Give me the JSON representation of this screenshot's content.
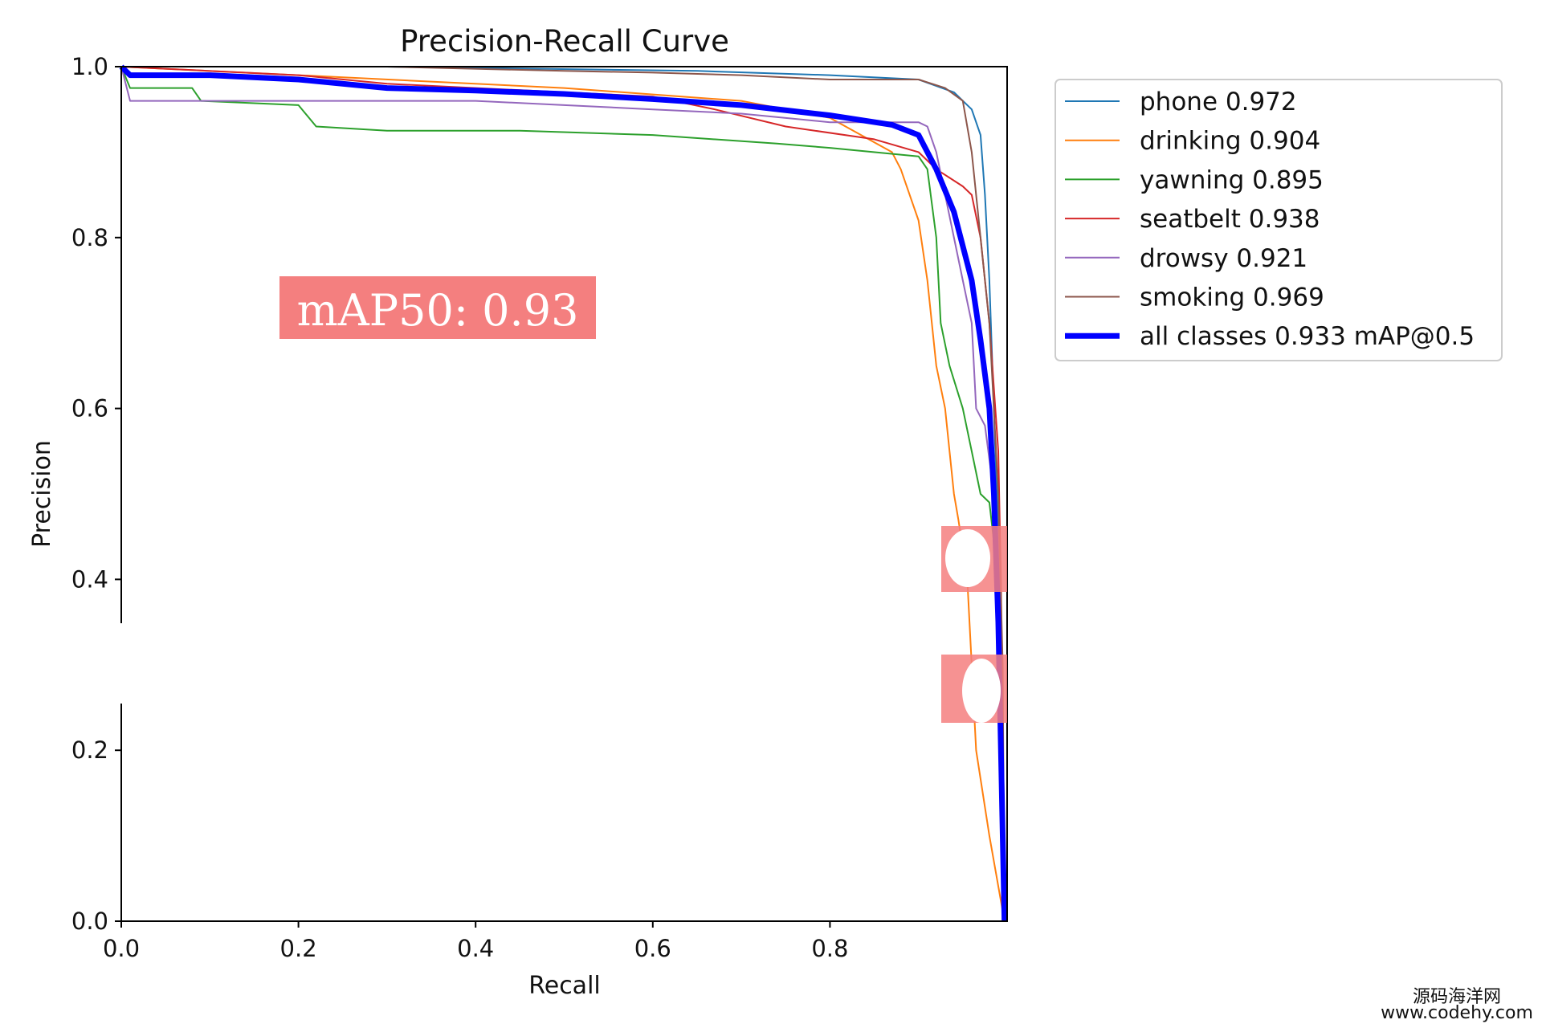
{
  "chart_data": {
    "type": "line",
    "title": "Precision-Recall Curve",
    "xlabel": "Recall",
    "ylabel": "Precision",
    "xlim": [
      0,
      1.0
    ],
    "ylim": [
      0,
      1.0
    ],
    "xticks": [
      "0.0",
      "0.2",
      "0.4",
      "0.6",
      "0.8"
    ],
    "yticks": [
      "0.0",
      "0.2",
      "0.4",
      "0.6",
      "0.8",
      "1.0"
    ],
    "xtick_values": [
      0,
      0.2,
      0.4,
      0.6,
      0.8
    ],
    "ytick_values": [
      0,
      0.2,
      0.4,
      0.6,
      0.8,
      1.0
    ],
    "grid": false,
    "legend_position": "outside-top-right",
    "series": [
      {
        "name": "phone 0.972",
        "color": "#1f77b4",
        "width": 2,
        "x": [
          0,
          0.3,
          0.65,
          0.8,
          0.9,
          0.94,
          0.96,
          0.97,
          0.975,
          0.98,
          0.985,
          0.99,
          0.993,
          0.997
        ],
        "y": [
          1,
          1,
          0.995,
          0.99,
          0.985,
          0.97,
          0.95,
          0.92,
          0.85,
          0.75,
          0.6,
          0.45,
          0.25,
          0
        ]
      },
      {
        "name": "drinking 0.904",
        "color": "#ff7f0e",
        "width": 2,
        "x": [
          0,
          0.2,
          0.5,
          0.7,
          0.8,
          0.87,
          0.88,
          0.9,
          0.91,
          0.92,
          0.93,
          0.94,
          0.945,
          0.955,
          0.96,
          0.965,
          0.98,
          0.997
        ],
        "y": [
          1,
          0.99,
          0.975,
          0.96,
          0.94,
          0.9,
          0.88,
          0.82,
          0.75,
          0.65,
          0.6,
          0.5,
          0.47,
          0.4,
          0.3,
          0.2,
          0.1,
          0
        ]
      },
      {
        "name": "yawning 0.895",
        "color": "#2ca02c",
        "width": 2,
        "x": [
          0,
          0.01,
          0.08,
          0.09,
          0.2,
          0.22,
          0.3,
          0.45,
          0.6,
          0.74,
          0.8,
          0.9,
          0.91,
          0.92,
          0.925,
          0.935,
          0.95,
          0.96,
          0.97,
          0.98,
          0.99,
          0.995,
          0.997
        ],
        "y": [
          1,
          0.975,
          0.975,
          0.96,
          0.955,
          0.93,
          0.925,
          0.925,
          0.92,
          0.91,
          0.905,
          0.895,
          0.88,
          0.8,
          0.7,
          0.65,
          0.6,
          0.55,
          0.5,
          0.49,
          0.4,
          0.2,
          0
        ]
      },
      {
        "name": "seatbelt 0.938",
        "color": "#d62728",
        "width": 2,
        "x": [
          0,
          0.2,
          0.3,
          0.5,
          0.6,
          0.67,
          0.75,
          0.85,
          0.9,
          0.92,
          0.95,
          0.96,
          0.97,
          0.98,
          0.99,
          0.993,
          0.995,
          0.997
        ],
        "y": [
          1,
          0.99,
          0.98,
          0.97,
          0.965,
          0.95,
          0.93,
          0.915,
          0.9,
          0.88,
          0.86,
          0.85,
          0.8,
          0.7,
          0.55,
          0.4,
          0.2,
          0
        ]
      },
      {
        "name": "drowsy 0.921",
        "color": "#9467bd",
        "width": 2,
        "x": [
          0,
          0.01,
          0.3,
          0.4,
          0.5,
          0.6,
          0.7,
          0.8,
          0.9,
          0.91,
          0.92,
          0.93,
          0.95,
          0.96,
          0.965,
          0.975,
          0.985,
          0.99,
          0.997
        ],
        "y": [
          1,
          0.96,
          0.96,
          0.96,
          0.955,
          0.95,
          0.945,
          0.935,
          0.935,
          0.93,
          0.9,
          0.85,
          0.75,
          0.7,
          0.6,
          0.58,
          0.5,
          0.45,
          0
        ]
      },
      {
        "name": "smoking 0.969",
        "color": "#8c564b",
        "width": 2,
        "x": [
          0,
          0.3,
          0.5,
          0.6,
          0.7,
          0.8,
          0.9,
          0.93,
          0.95,
          0.96,
          0.965,
          0.97,
          0.975,
          0.98,
          0.985,
          0.99,
          0.995,
          0.997
        ],
        "y": [
          1,
          1,
          0.995,
          0.993,
          0.99,
          0.985,
          0.985,
          0.975,
          0.96,
          0.9,
          0.85,
          0.8,
          0.75,
          0.7,
          0.6,
          0.5,
          0.3,
          0
        ]
      },
      {
        "name": "all classes 0.933 mAP@0.5",
        "color": "#0000ff",
        "width": 7,
        "x": [
          0,
          0.01,
          0.1,
          0.2,
          0.3,
          0.4,
          0.5,
          0.6,
          0.7,
          0.8,
          0.87,
          0.9,
          0.92,
          0.94,
          0.96,
          0.97,
          0.98,
          0.985,
          0.99,
          0.993,
          0.997
        ],
        "y": [
          1,
          0.99,
          0.99,
          0.985,
          0.975,
          0.972,
          0.968,
          0.962,
          0.955,
          0.943,
          0.932,
          0.92,
          0.88,
          0.83,
          0.75,
          0.68,
          0.6,
          0.5,
          0.35,
          0.2,
          0
        ]
      }
    ],
    "annotations": [
      "mAP50: 0.93"
    ]
  },
  "watermark": {
    "line1": "源码海洋网",
    "line2": "www.codehy.com"
  }
}
